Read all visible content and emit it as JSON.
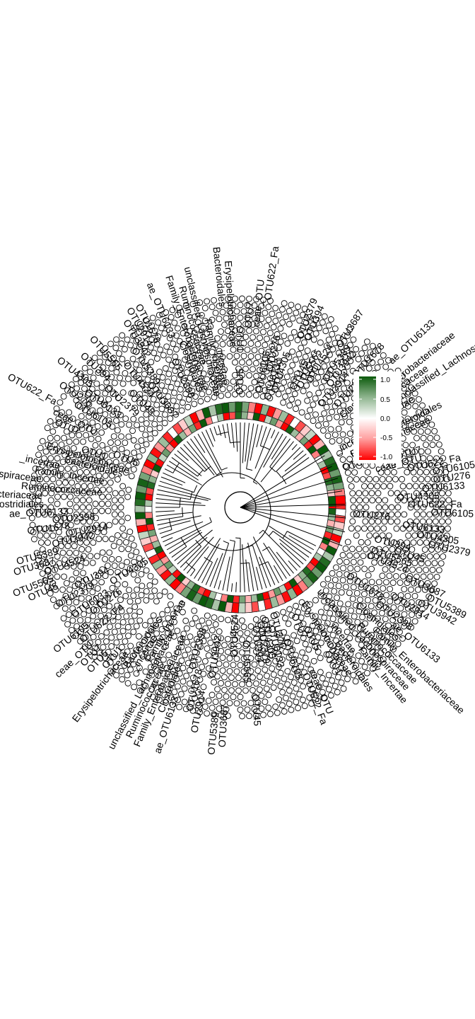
{
  "figure": {
    "type": "circular phylogenetic tree with heatmap ring",
    "branch_color": "#000000",
    "background": "#ffffff"
  },
  "legend": {
    "ticks": [
      "1.0",
      "0.5",
      "0.0",
      "-0.5",
      "-1.0"
    ],
    "range": [
      -1.0,
      1.0
    ],
    "colors": {
      "low": "#ff0000",
      "mid": "#ffffff",
      "high": "#0b5a0b"
    }
  },
  "chart_data": {
    "type": "heatmap",
    "title": "",
    "scale": {
      "min": -1.0,
      "max": 1.0
    },
    "legend_ticks": [
      1.0,
      0.5,
      0.0,
      -0.5,
      -1.0
    ],
    "legend_position": "right",
    "ring_values": [
      -1.0,
      0.95,
      0.4,
      -0.3,
      0.55,
      -0.85,
      1.0,
      -0.5,
      0.0,
      0.35,
      -1.0,
      -0.7,
      0.9,
      0.45,
      -0.2,
      1.0,
      -0.95,
      0.25,
      0.6,
      -0.4
    ]
  },
  "tip_labels": [
    "OTU622_Fa",
    "OTU6105",
    "OTU276",
    "OTU6133",
    "OTU4305",
    "OTU2379",
    "OTU394",
    "OTU45",
    "OTU5565",
    "OTU4524",
    "OTU3687",
    "OTU5389",
    "OTU3942",
    "OTU2914",
    "OTU1678",
    "OTU2398",
    "ae_OTU6133",
    "Clostridiales",
    "Family_Enterobacteriaceae",
    "Ruminococcaceae",
    "unclassified_Lachnospiraceae",
    "Family_Incertae",
    "_incertae",
    "Bacteroidales",
    "Erysipelotrichaceae",
    "OTU1",
    "OTU5",
    "OTU7",
    "ceae_OTU"
  ]
}
